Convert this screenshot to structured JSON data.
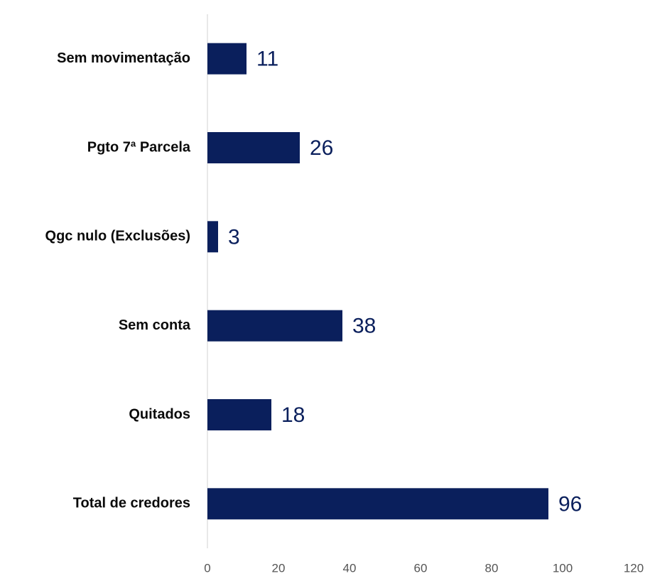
{
  "chart_data": {
    "type": "barh",
    "categories": [
      "Sem movimentação",
      "Pgto 7ª Parcela",
      "Qgc nulo (Exclusões)",
      "Sem conta",
      "Quitados",
      "Total de credores"
    ],
    "values": [
      11,
      26,
      3,
      38,
      18,
      96
    ],
    "color": "#0a1f5c",
    "xlim": [
      0,
      120
    ],
    "xticks": [
      0,
      20,
      40,
      60,
      80,
      100,
      120
    ],
    "grid": false
  }
}
